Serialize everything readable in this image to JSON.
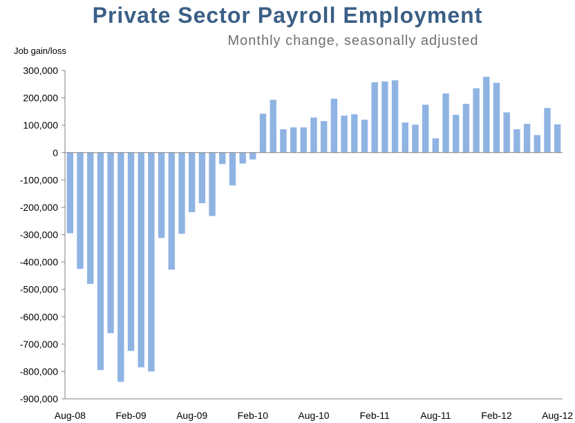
{
  "chart_data": {
    "type": "bar",
    "title": "Private Sector Payroll Employment",
    "subtitle": "Monthly change, seasonally adjusted",
    "ylabel": "Job gain/loss",
    "xlabel": "",
    "ylim": [
      -900000,
      300000
    ],
    "yticks": [
      300000,
      200000,
      100000,
      0,
      -100000,
      -200000,
      -300000,
      -400000,
      -500000,
      -600000,
      -700000,
      -800000,
      -900000
    ],
    "ytick_labels": [
      "300,000",
      "200,000",
      "100,000",
      "0",
      "-100,000",
      "-200,000",
      "-300,000",
      "-400,000",
      "-500,000",
      "-600,000",
      "-700,000",
      "-800,000",
      "-900,000"
    ],
    "xtick_labels": [
      "Aug-08",
      "Feb-09",
      "Aug-09",
      "Feb-10",
      "Aug-10",
      "Feb-11",
      "Aug-11",
      "Feb-12",
      "Aug-12"
    ],
    "categories": [
      "Aug-08",
      "Sep-08",
      "Oct-08",
      "Nov-08",
      "Dec-08",
      "Jan-09",
      "Feb-09",
      "Mar-09",
      "Apr-09",
      "May-09",
      "Jun-09",
      "Jul-09",
      "Aug-09",
      "Sep-09",
      "Oct-09",
      "Nov-09",
      "Dec-09",
      "Jan-10",
      "Feb-10",
      "Mar-10",
      "Apr-10",
      "May-10",
      "Jun-10",
      "Jul-10",
      "Aug-10",
      "Sep-10",
      "Oct-10",
      "Nov-10",
      "Dec-10",
      "Jan-11",
      "Feb-11",
      "Mar-11",
      "Apr-11",
      "May-11",
      "Jun-11",
      "Jul-11",
      "Aug-11",
      "Sep-11",
      "Oct-11",
      "Nov-11",
      "Dec-11",
      "Jan-12",
      "Feb-12",
      "Mar-12",
      "Apr-12",
      "May-12",
      "Jun-12",
      "Jul-12",
      "Aug-12"
    ],
    "values": [
      -295000,
      -425000,
      -480000,
      -795000,
      -660000,
      -838000,
      -725000,
      -785000,
      -800000,
      -312000,
      -428000,
      -297000,
      -218000,
      -185000,
      -232000,
      -42000,
      -120000,
      -40000,
      -25000,
      142000,
      193000,
      85000,
      92000,
      92000,
      128000,
      115000,
      197000,
      135000,
      140000,
      120000,
      257000,
      260000,
      264000,
      110000,
      102000,
      175000,
      52000,
      216000,
      138000,
      178000,
      235000,
      277000,
      255000,
      147000,
      85000,
      105000,
      64000,
      163000,
      103000
    ],
    "bar_color": "#8fb4e3",
    "grid": false,
    "legend": "none"
  }
}
